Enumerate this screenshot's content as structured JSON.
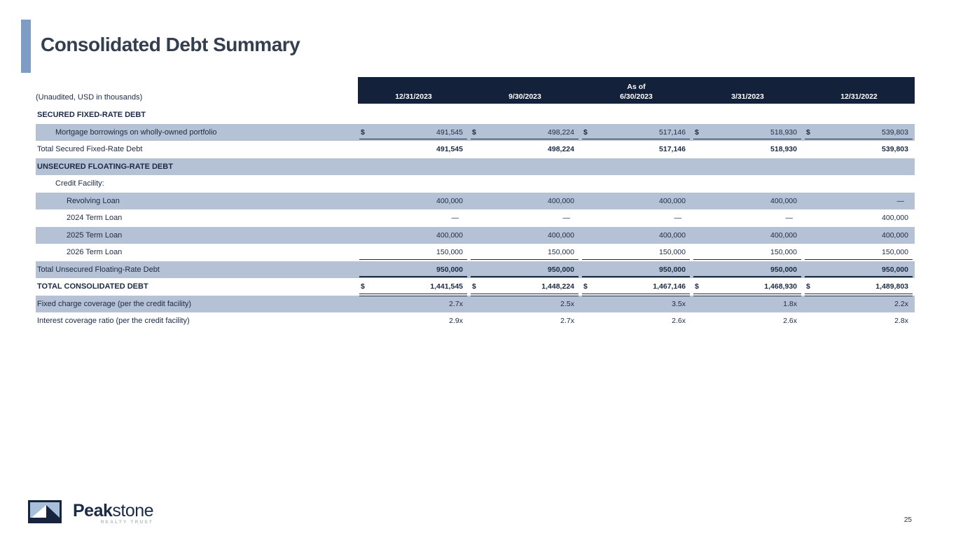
{
  "slide": {
    "title": "Consolidated Debt Summary",
    "note": "(Unaudited, USD in thousands)",
    "page_number": "25"
  },
  "colors": {
    "header_bg": "#13213b",
    "stripe": "#b5c2d6",
    "ink": "#1b2a45",
    "accent_bar": "#7f9cc4",
    "tagline": "#a9bbd0"
  },
  "logo": {
    "brand_bold": "Peak",
    "brand_light": "stone",
    "tagline": "REALTY TRUST"
  },
  "table": {
    "as_of_label": "As of",
    "columns": [
      "12/31/2023",
      "9/30/2023",
      "6/30/2023",
      "3/31/2023",
      "12/31/2022"
    ],
    "rows": [
      {
        "label": "SECURED FIXED-RATE DEBT",
        "section": true,
        "indent": 0,
        "shaded": false,
        "values": [
          "",
          "",
          "",
          "",
          ""
        ]
      },
      {
        "label": "Mortgage borrowings on wholly-owned portfolio",
        "indent": 1,
        "shaded": true,
        "dollar": true,
        "underline": "single",
        "values": [
          "491,545",
          "498,224",
          "517,146",
          "518,930",
          "539,803"
        ]
      },
      {
        "label": "Total Secured Fixed-Rate Debt",
        "indent": 0,
        "bold_values": true,
        "values": [
          "491,545",
          "498,224",
          "517,146",
          "518,930",
          "539,803"
        ]
      },
      {
        "label": "UNSECURED FLOATING-RATE DEBT",
        "section": true,
        "indent": 0,
        "shaded": true,
        "values": [
          "",
          "",
          "",
          "",
          ""
        ]
      },
      {
        "label": "Credit Facility:",
        "indent": 1,
        "values": [
          "",
          "",
          "",
          "",
          ""
        ]
      },
      {
        "label": "Revolving Loan",
        "indent": 2,
        "shaded": true,
        "values": [
          "400,000",
          "400,000",
          "400,000",
          "400,000",
          "—"
        ]
      },
      {
        "label": "2024 Term Loan",
        "indent": 2,
        "values": [
          "—",
          "—",
          "—",
          "—",
          "400,000"
        ]
      },
      {
        "label": "2025 Term Loan",
        "indent": 2,
        "shaded": true,
        "values": [
          "400,000",
          "400,000",
          "400,000",
          "400,000",
          "400,000"
        ]
      },
      {
        "label": "2026 Term Loan",
        "indent": 2,
        "underline": "single",
        "values": [
          "150,000",
          "150,000",
          "150,000",
          "150,000",
          "150,000"
        ]
      },
      {
        "label": "Total Unsecured Floating-Rate Debt",
        "indent": 0,
        "shaded": true,
        "bold_values": true,
        "underline": "heavy",
        "values": [
          "950,000",
          "950,000",
          "950,000",
          "950,000",
          "950,000"
        ]
      },
      {
        "label": "TOTAL CONSOLIDATED DEBT",
        "section": true,
        "indent": 0,
        "dollar": true,
        "bold_values": true,
        "underline": "double",
        "values": [
          "1,441,545",
          "1,448,224",
          "1,467,146",
          "1,468,930",
          "1,489,803"
        ]
      },
      {
        "label": "Fixed charge coverage (per the credit facility)",
        "indent": 0,
        "shaded": true,
        "values": [
          "2.7x",
          "2.5x",
          "3.5x",
          "1.8x",
          "2.2x"
        ]
      },
      {
        "label": "Interest coverage ratio (per the credit facility)",
        "indent": 0,
        "values": [
          "2.9x",
          "2.7x",
          "2.6x",
          "2.6x",
          "2.8x"
        ]
      }
    ]
  }
}
